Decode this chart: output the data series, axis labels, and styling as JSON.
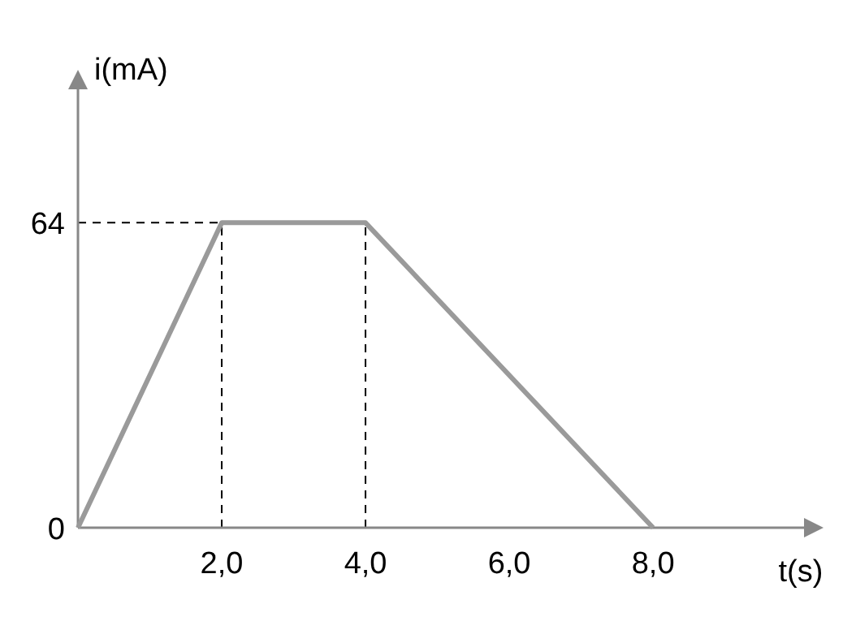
{
  "chart_data": {
    "type": "line",
    "xlabel": "t(s)",
    "ylabel": "i(mA)",
    "x": [
      0,
      2,
      4,
      8
    ],
    "series": [
      {
        "color": "#9a9a9a",
        "values": [
          0,
          64,
          64,
          0
        ]
      }
    ],
    "xlim": [
      0,
      10.1
    ],
    "xticks": [
      {
        "value": 2,
        "label": "2,0"
      },
      {
        "value": 4,
        "label": "4,0"
      },
      {
        "value": 6,
        "label": "6,0"
      },
      {
        "value": 8,
        "label": "8,0"
      }
    ],
    "ylim": [
      0,
      92
    ],
    "yticks": [
      {
        "value": 0,
        "label": "0"
      },
      64
    ],
    "ref_lines": [
      {
        "axis": "x",
        "value": 2,
        "line_style": "dashed",
        "color": "#000000"
      },
      {
        "axis": "x",
        "value": 4,
        "line_style": "dashed",
        "color": "#000000"
      },
      {
        "axis": "y",
        "value": 64,
        "line_style": "dashed",
        "color": "#000000"
      }
    ],
    "grid": false,
    "marker": "none",
    "line_style": "solid"
  }
}
